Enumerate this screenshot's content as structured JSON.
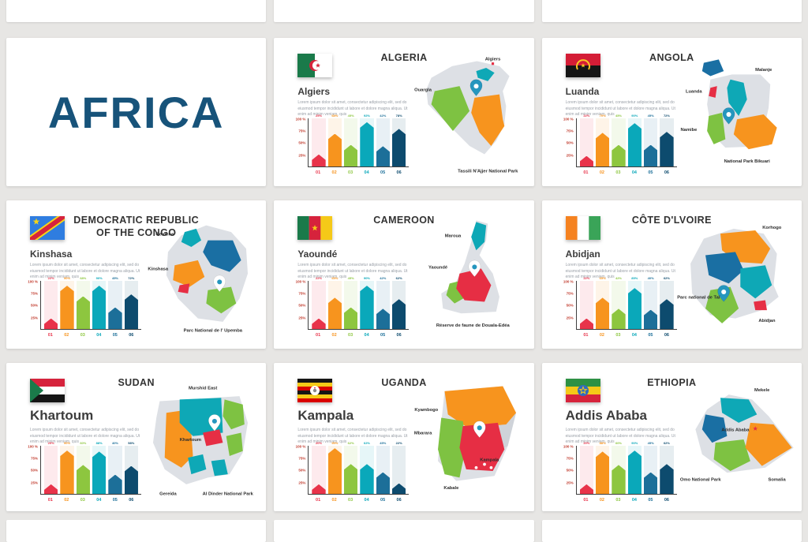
{
  "page": {
    "background_color": "#e7e6e4",
    "card_color": "#ffffff"
  },
  "title_slide": {
    "text": "AFRICA",
    "color": "#17537a"
  },
  "chart_template": {
    "y_axis_labels": [
      "100 %",
      "75%",
      "50%",
      "25%"
    ],
    "x_axis_labels": [
      "01",
      "02",
      "03",
      "04",
      "05",
      "06"
    ],
    "bar_colors": [
      "#e8334a",
      "#f7941e",
      "#8dc63f",
      "#0aa8ba",
      "#1c6f99",
      "#0d4b6e"
    ],
    "tick_color": "#c0392b"
  },
  "map_colors": {
    "base": "#dde0e5",
    "grey": "#cfd3d9",
    "orange": "#f7941e",
    "teal": "#0ea8b6",
    "blue": "#1a6fa3",
    "green": "#7ec242",
    "red": "#e62e44",
    "pin_teal": "#2596be",
    "pin_white": "#ffffff"
  },
  "countries": [
    {
      "id": "algeria",
      "name": "ALGERIA",
      "capital": "Algiers",
      "description": "Lorem ipsum dolor sit amet, consectetur adipiscing elit, sed do eiusmod tempor incididunt ut labore et dolore magna aliqua. Ut enim ad minim veniam, quis",
      "bar_values": [
        25,
        68,
        45,
        92,
        42,
        78
      ],
      "map_labels": [
        "Algiers",
        "Ouargla",
        "Tassili N'Ajjer National Park"
      ]
    },
    {
      "id": "angola",
      "name": "ANGOLA",
      "capital": "Luanda",
      "description": "Lorem ipsum dolor sit amet, consectetur adipiscing elit, sed do eiusmod tempor incididunt ut labore et dolore magna aliqua. Ut enim ad minim veniam, quis",
      "bar_values": [
        22,
        70,
        45,
        90,
        45,
        72
      ],
      "map_labels": [
        "Malanje",
        "Luanda",
        "Namibe",
        "National Park Bikuari"
      ]
    },
    {
      "id": "drc",
      "name": "DEMOCRATIC REPUBLIC OF THE CONGO",
      "capital": "Kinshasa",
      "description": "Lorem ipsum dolor sit amet, consectetur adipiscing elit, sed do eiusmod tempor incididunt ut labore et dolore magna aliqua. Ut enim ad minim veniam, quis",
      "bar_values": [
        22,
        90,
        68,
        90,
        45,
        72
      ],
      "map_labels": [
        "Gemena",
        "Kinshasa",
        "Parc National de l' Upemba"
      ]
    },
    {
      "id": "cameroon",
      "name": "CAMEROON",
      "capital": "Yaoundé",
      "description": "Lorem ipsum dolor sit amet, consectetur adipiscing elit, sed do eiusmod tempor incididunt ut labore et dolore magna aliqua. Ut enim ad minim veniam, quis",
      "bar_values": [
        22,
        65,
        45,
        90,
        42,
        62
      ],
      "map_labels": [
        "Maroua",
        "Yaoundé",
        "Réserve de faune de Douala-Edéa"
      ]
    },
    {
      "id": "cotedivoire",
      "name": "CÔTE D'LVOIRE",
      "capital": "Abidjan",
      "description": "Lorem ipsum dolor sit amet, consectetur adipiscing elit, sed do eiusmod tempor incididunt ut labore et dolore magna aliqua. Ut enim ad minim veniam, quis",
      "bar_values": [
        22,
        65,
        42,
        85,
        40,
        62
      ],
      "map_labels": [
        "Korhogo",
        "Parc national de Taï",
        "Abidjan"
      ]
    },
    {
      "id": "sudan",
      "name": "SUDAN",
      "capital": "Khartoum",
      "description": "Lorem ipsum dolor sit amet, consectetur adipiscing elit, sed do eiusmod tempor incididunt ut labore et dolore magna aliqua. Ut enim ad minim veniam, quis",
      "bar_values": [
        20,
        90,
        60,
        88,
        40,
        58
      ],
      "map_labels": [
        "Murshid East",
        "Khartoum",
        "Gereida",
        "Al Dinder National Park"
      ]
    },
    {
      "id": "uganda",
      "name": "UGANDA",
      "capital": "Kampala",
      "description": "Lorem ipsum dolor sit amet, consectetur adipiscing elit, sed do eiusmod tempor incididunt ut labore et dolore magna aliqua. Ut enim ad minim veniam, quis",
      "bar_values": [
        20,
        95,
        62,
        62,
        45,
        22
      ],
      "map_labels": [
        "Kyambogo",
        "Mbarara",
        "Kampala",
        "Kabale"
      ]
    },
    {
      "id": "ethiopia",
      "name": "ETHIOPIA",
      "capital": "Addis Ababa",
      "description": "Lorem ipsum dolor sit amet, consectetur adipiscing elit, sed do eiusmod tempor incididunt ut labore et dolore magna aliqua. Ut enim ad minim veniam, quis",
      "bar_values": [
        20,
        88,
        60,
        90,
        45,
        62
      ],
      "map_labels": [
        "Mekele",
        "Addis Ababa",
        "Omo National Park",
        "Somalia"
      ]
    }
  ]
}
